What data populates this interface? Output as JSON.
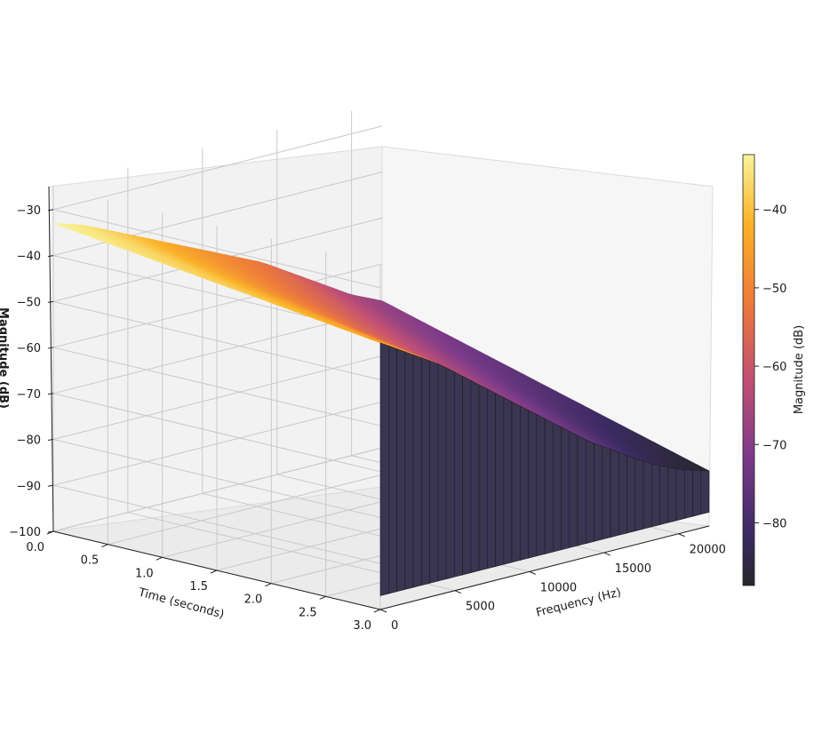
{
  "chart_data": {
    "type": "surface3d",
    "title": "",
    "xlabel": "Time (seconds)",
    "ylabel": "Frequency (Hz)",
    "zlabel": "Magnitude (dB)",
    "colorbar_label": "Magnitude (dB)",
    "colormap": "inferno",
    "xlim": [
      0.0,
      3.0
    ],
    "ylim": [
      0,
      22050
    ],
    "zlim": [
      -100,
      -25
    ],
    "color_range": [
      -88,
      -33
    ],
    "x_ticks": [
      "0.0",
      "0.5",
      "1.0",
      "1.5",
      "2.0",
      "2.5",
      "3.0"
    ],
    "y_ticks": [
      "0",
      "5000",
      "10000",
      "15000",
      "20000"
    ],
    "z_ticks": [
      "−30",
      "−40",
      "−50",
      "−60",
      "−70",
      "−80",
      "−90",
      "−100"
    ],
    "colorbar_ticks": [
      "−40",
      "−50",
      "−60",
      "−70",
      "−80"
    ],
    "x_tick_values": [
      0.0,
      0.5,
      1.0,
      1.5,
      2.0,
      2.5,
      3.0
    ],
    "y_tick_values": [
      0,
      5000,
      10000,
      15000,
      20000
    ],
    "z_tick_values": [
      -30,
      -40,
      -50,
      -60,
      -70,
      -80,
      -90,
      -100
    ],
    "colorbar_tick_values": [
      -40,
      -50,
      -60,
      -70,
      -80
    ],
    "series": [
      {
        "frequency_hz": [
          0,
          2000,
          4000,
          6000,
          8000,
          10000,
          12000,
          14000,
          16000,
          18000,
          20000,
          22050
        ],
        "magnitude_db_at_t0": [
          -33,
          -35,
          -38,
          -41,
          -44,
          -47,
          -50,
          -53,
          -57,
          -61,
          -65,
          -68
        ],
        "magnitude_db_at_t3": [
          -42,
          -46,
          -50,
          -55,
          -60,
          -65,
          -70,
          -75,
          -79,
          -83,
          -86,
          -88
        ]
      }
    ],
    "grid": true
  }
}
